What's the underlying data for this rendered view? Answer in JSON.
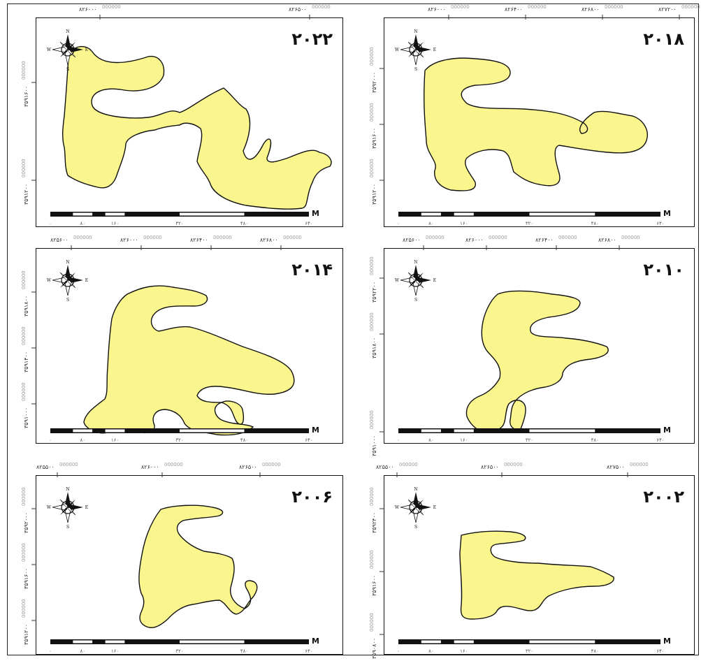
{
  "figure": {
    "colors": {
      "lake_fill": "#FBF58E",
      "outline": "#111111",
      "frame": "#222222"
    },
    "panels": [
      {
        "id": "2022",
        "year": "۲۰۲۲",
        "x_ticks": [
          {
            "label": "۸۲۶۰۰۰",
            "suffix": "000000"
          },
          {
            "label": "۸۲۶۵۰۰",
            "suffix": "000000"
          }
        ],
        "y_ticks": [
          {
            "label": "۳۵۹۱۶۰۰",
            "suffix": "000000"
          },
          {
            "label": "۳۵۹۱۲۰۰",
            "suffix": "000000"
          }
        ],
        "scale_labels": [
          "۰",
          "۸۰",
          "۱۶۰",
          "۳۲۰",
          "۴۸۰",
          "۶۴۰"
        ],
        "scale_unit": "M",
        "compass": {
          "n": "N",
          "s": "S",
          "e": "E",
          "w": "W",
          "icon": "north-arrow-compass-rose"
        }
      },
      {
        "id": "2018",
        "year": "۲۰۱۸",
        "x_ticks": [
          {
            "label": "۸۲۶۰۰۰",
            "suffix": "000000"
          },
          {
            "label": "۸۲۶۴۰۰",
            "suffix": "000000"
          },
          {
            "label": "۸۲۶۸۰۰",
            "suffix": "000000"
          },
          {
            "label": "۸۲۷۲۰۰",
            "suffix": "000000"
          }
        ],
        "y_ticks": [
          {
            "label": "۳۵۹۲۰۰۰",
            "suffix": "000000"
          },
          {
            "label": "۳۵۹۱۶۰۰",
            "suffix": "000000"
          },
          {
            "label": "۳۵۹۱۲۰۰",
            "suffix": "000000"
          }
        ],
        "scale_labels": [
          "۰",
          "۸۰",
          "۱۶۰",
          "۳۲۰",
          "۴۸۰",
          "۶۴۰"
        ],
        "scale_unit": "M",
        "compass": {
          "n": "N",
          "s": "S",
          "e": "E",
          "w": "W",
          "icon": "north-arrow-compass-rose"
        }
      },
      {
        "id": "2014",
        "year": "۲۰۱۴",
        "x_ticks": [
          {
            "label": "۸۲۵۶۰۰",
            "suffix": "000000"
          },
          {
            "label": "۸۲۶۰۰۰",
            "suffix": "000000"
          },
          {
            "label": "۸۲۶۴۰۰",
            "suffix": "000000"
          },
          {
            "label": "۸۲۶۸۰۰",
            "suffix": "000000"
          }
        ],
        "y_ticks": [
          {
            "label": "۳۵۹۱۸۰۰",
            "suffix": "000000"
          },
          {
            "label": "۳۵۹۱۴۰۰",
            "suffix": "000000"
          },
          {
            "label": "۳۵۹۱۰۰۰",
            "suffix": "000000"
          }
        ],
        "scale_labels": [
          "۰",
          "۸۰",
          "۱۶۰",
          "۳۲۰",
          "۴۸۰",
          "۶۴۰"
        ],
        "scale_unit": "M",
        "compass": {
          "n": "N",
          "s": "S",
          "e": "E",
          "w": "W",
          "icon": "north-arrow-compass-rose"
        }
      },
      {
        "id": "2010",
        "year": "۲۰۱۰",
        "x_ticks": [
          {
            "label": "۸۲۵۶۰۰",
            "suffix": "000000"
          },
          {
            "label": "۸۲۶۰۰۰",
            "suffix": "000000"
          },
          {
            "label": "۸۲۶۴۰۰",
            "suffix": "000000"
          },
          {
            "label": "۸۲۶۸۰۰",
            "suffix": "000000"
          }
        ],
        "y_ticks": [
          {
            "label": "۳۵۹۲۲۰۰",
            "suffix": "000000"
          },
          {
            "label": "۳۵۹۱۸۰۰",
            "suffix": "000000"
          },
          {
            "label": "۳۵۹۱۰۰۰",
            "suffix": "000000"
          }
        ],
        "scale_labels": [
          "۰",
          "۸۰",
          "۱۶۰",
          "۳۲۰",
          "۴۸۰",
          "۶۴۰"
        ],
        "scale_unit": "M",
        "compass": {
          "n": "N",
          "s": "S",
          "e": "E",
          "w": "W",
          "icon": "north-arrow-compass-rose"
        }
      },
      {
        "id": "2006",
        "year": "۲۰۰۶",
        "x_ticks": [
          {
            "label": "۸۲۵۵۰۰",
            "suffix": "000000"
          },
          {
            "label": "۸۲۶۰۰۰",
            "suffix": "000000"
          },
          {
            "label": "۸۲۶۵۰۰",
            "suffix": "000000"
          }
        ],
        "y_ticks": [
          {
            "label": "۳۵۹۲۰۰۰",
            "suffix": "000000"
          },
          {
            "label": "۳۵۹۱۶۰۰",
            "suffix": "000000"
          },
          {
            "label": "۳۵۹۱۲۰۰",
            "suffix": "000000"
          }
        ],
        "scale_labels": [
          "۰",
          "۸۰",
          "۱۶۰",
          "۳۲۰",
          "۴۸۰",
          "۶۴۰"
        ],
        "scale_unit": "M",
        "compass": {
          "n": "N",
          "s": "S",
          "e": "E",
          "w": "W",
          "icon": "north-arrow-compass-rose"
        }
      },
      {
        "id": "2002",
        "year": "۲۰۰۲",
        "x_ticks": [
          {
            "label": "۸۲۵۵۰۰",
            "suffix": "000000"
          },
          {
            "label": "۸۲۶۵۰۰",
            "suffix": "000000"
          },
          {
            "label": "۸۲۷۵۰۰",
            "suffix": "000000"
          }
        ],
        "y_ticks": [
          {
            "label": "۳۵۹۲۴۰۰",
            "suffix": "000000"
          },
          {
            "label": "۳۵۹۱۶۰۰",
            "suffix": "000000"
          },
          {
            "label": "۳۵۹۰۸۰۰",
            "suffix": "000000"
          }
        ],
        "scale_labels": [
          "۰",
          "۸۰",
          "۱۶۰",
          "۳۲۰",
          "۴۸۰",
          "۶۴۰"
        ],
        "scale_unit": "M",
        "compass": {
          "n": "N",
          "s": "S",
          "e": "E",
          "w": "W",
          "icon": "north-arrow-compass-rose"
        }
      }
    ]
  }
}
